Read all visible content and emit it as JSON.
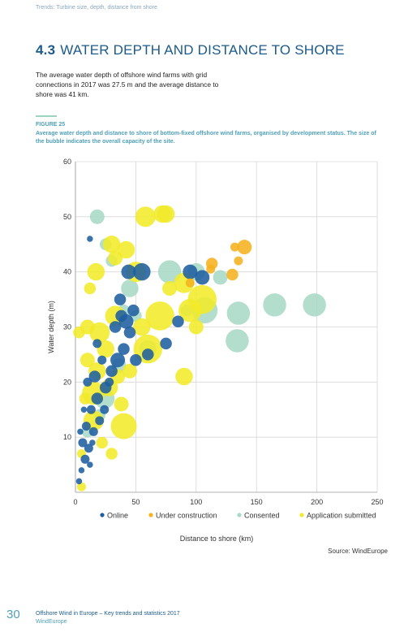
{
  "running_head": "Trends: Turbine size, depth, distance from shore",
  "section": {
    "number": "4.3",
    "title": "WATER DEPTH AND DISTANCE TO SHORE"
  },
  "intro": "The average water depth of offshore wind farms with grid connections in 2017 was 27.5 m and the average distance to shore was 41 km.",
  "figure": {
    "label": "FIGURE 25",
    "caption": "Average water depth and distance to shore of bottom-fixed offshore wind farms, organised by development status. The size of the bubble indicates the overall capacity of the site."
  },
  "source": "Source: WindEurope",
  "footer": {
    "page_number": "30",
    "title": "Offshore Wind in Europe – Key trends and statistics 2017",
    "org": "WindEurope"
  },
  "colors": {
    "online": "#1f5fa0",
    "under_construction": "#f5b21f",
    "consented": "#a9d9c6",
    "application_submitted": "#f1ea2a"
  },
  "chart_data": {
    "type": "scatter",
    "title": "",
    "xlabel": "Distance to shore (km)",
    "ylabel": "Water depth (m)",
    "xlim": [
      0,
      250
    ],
    "ylim": [
      0,
      60
    ],
    "x_ticks": [
      0,
      50,
      100,
      150,
      200,
      250
    ],
    "y_ticks": [
      10,
      20,
      30,
      40,
      50,
      60
    ],
    "grid": "vertical",
    "legend_position": "bottom",
    "size_encoding": "overall capacity of the site",
    "series": [
      {
        "name": "Online",
        "color": "#1f5fa0",
        "points": [
          {
            "x": 3,
            "y": 2,
            "s": 1
          },
          {
            "x": 5,
            "y": 4,
            "s": 1
          },
          {
            "x": 8,
            "y": 6,
            "s": 2
          },
          {
            "x": 12,
            "y": 5,
            "s": 1
          },
          {
            "x": 6,
            "y": 9,
            "s": 2
          },
          {
            "x": 11,
            "y": 8,
            "s": 2
          },
          {
            "x": 14,
            "y": 9,
            "s": 1
          },
          {
            "x": 9,
            "y": 12,
            "s": 2
          },
          {
            "x": 15,
            "y": 11,
            "s": 2
          },
          {
            "x": 13,
            "y": 15,
            "s": 2
          },
          {
            "x": 18,
            "y": 17,
            "s": 3
          },
          {
            "x": 10,
            "y": 20,
            "s": 2
          },
          {
            "x": 16,
            "y": 21,
            "s": 3
          },
          {
            "x": 25,
            "y": 19,
            "s": 3
          },
          {
            "x": 30,
            "y": 22,
            "s": 3
          },
          {
            "x": 22,
            "y": 24,
            "s": 2
          },
          {
            "x": 35,
            "y": 24,
            "s": 4
          },
          {
            "x": 40,
            "y": 26,
            "s": 3
          },
          {
            "x": 33,
            "y": 30,
            "s": 3
          },
          {
            "x": 38,
            "y": 32,
            "s": 3
          },
          {
            "x": 45,
            "y": 29,
            "s": 3
          },
          {
            "x": 37,
            "y": 35,
            "s": 3
          },
          {
            "x": 44,
            "y": 40,
            "s": 4
          },
          {
            "x": 55,
            "y": 40,
            "s": 5
          },
          {
            "x": 60,
            "y": 25,
            "s": 3
          },
          {
            "x": 75,
            "y": 27,
            "s": 3
          },
          {
            "x": 85,
            "y": 31,
            "s": 3
          },
          {
            "x": 95,
            "y": 40,
            "s": 4
          },
          {
            "x": 105,
            "y": 39,
            "s": 4
          },
          {
            "x": 12,
            "y": 46,
            "s": 1
          },
          {
            "x": 50,
            "y": 24,
            "s": 3
          },
          {
            "x": 28,
            "y": 20,
            "s": 2
          },
          {
            "x": 20,
            "y": 13,
            "s": 2
          },
          {
            "x": 7,
            "y": 15,
            "s": 1
          },
          {
            "x": 4,
            "y": 11,
            "s": 1
          },
          {
            "x": 18,
            "y": 27,
            "s": 2
          },
          {
            "x": 42,
            "y": 31,
            "s": 4
          },
          {
            "x": 48,
            "y": 33,
            "s": 3
          },
          {
            "x": 24,
            "y": 15,
            "s": 2
          }
        ]
      },
      {
        "name": "Under construction",
        "color": "#f5b21f",
        "points": [
          {
            "x": 132,
            "y": 44.5,
            "s": 2
          },
          {
            "x": 140,
            "y": 44.5,
            "s": 4
          },
          {
            "x": 130,
            "y": 39.5,
            "s": 3
          },
          {
            "x": 113,
            "y": 41.5,
            "s": 3
          },
          {
            "x": 112,
            "y": 40.5,
            "s": 2
          },
          {
            "x": 135,
            "y": 42,
            "s": 2
          },
          {
            "x": 95,
            "y": 38,
            "s": 2
          }
        ]
      },
      {
        "name": "Consented",
        "color": "#a9d9c6",
        "points": [
          {
            "x": 18,
            "y": 50,
            "s": 4
          },
          {
            "x": 25,
            "y": 45,
            "s": 3
          },
          {
            "x": 30,
            "y": 42,
            "s": 3
          },
          {
            "x": 78,
            "y": 40,
            "s": 7
          },
          {
            "x": 100,
            "y": 40,
            "s": 5
          },
          {
            "x": 120,
            "y": 39,
            "s": 4
          },
          {
            "x": 107,
            "y": 33,
            "s": 8
          },
          {
            "x": 135,
            "y": 32.5,
            "s": 7
          },
          {
            "x": 165,
            "y": 34,
            "s": 7
          },
          {
            "x": 198,
            "y": 34,
            "s": 7
          },
          {
            "x": 134,
            "y": 27.5,
            "s": 7
          },
          {
            "x": 45,
            "y": 37,
            "s": 5
          },
          {
            "x": 60,
            "y": 26,
            "s": 5
          },
          {
            "x": 36,
            "y": 23,
            "s": 4
          },
          {
            "x": 24,
            "y": 17,
            "s": 6
          },
          {
            "x": 20,
            "y": 14,
            "s": 3
          },
          {
            "x": 10,
            "y": 11,
            "s": 3
          },
          {
            "x": 92,
            "y": 33,
            "s": 3
          },
          {
            "x": 40,
            "y": 33,
            "s": 3
          },
          {
            "x": 50,
            "y": 32,
            "s": 3
          }
        ]
      },
      {
        "name": "Application submitted",
        "color": "#f1ea2a",
        "points": [
          {
            "x": 58,
            "y": 50,
            "s": 6
          },
          {
            "x": 72,
            "y": 50.5,
            "s": 5
          },
          {
            "x": 75,
            "y": 50.5,
            "s": 5
          },
          {
            "x": 30,
            "y": 45,
            "s": 5
          },
          {
            "x": 42,
            "y": 44,
            "s": 5
          },
          {
            "x": 33,
            "y": 42.5,
            "s": 4
          },
          {
            "x": 17,
            "y": 40,
            "s": 5
          },
          {
            "x": 50,
            "y": 40,
            "s": 6
          },
          {
            "x": 90,
            "y": 38,
            "s": 6
          },
          {
            "x": 78,
            "y": 37,
            "s": 4
          },
          {
            "x": 12,
            "y": 37,
            "s": 3
          },
          {
            "x": 70,
            "y": 32,
            "s": 9
          },
          {
            "x": 105,
            "y": 35,
            "s": 9
          },
          {
            "x": 95,
            "y": 33,
            "s": 7
          },
          {
            "x": 100,
            "y": 30,
            "s": 4
          },
          {
            "x": 55,
            "y": 30,
            "s": 5
          },
          {
            "x": 33,
            "y": 32,
            "s": 6
          },
          {
            "x": 20,
            "y": 29,
            "s": 6
          },
          {
            "x": 10,
            "y": 30,
            "s": 4
          },
          {
            "x": 60,
            "y": 26,
            "s": 9
          },
          {
            "x": 90,
            "y": 21,
            "s": 5
          },
          {
            "x": 40,
            "y": 12,
            "s": 8
          },
          {
            "x": 15,
            "y": 18,
            "s": 7
          },
          {
            "x": 15,
            "y": 13,
            "s": 6
          },
          {
            "x": 10,
            "y": 24,
            "s": 4
          },
          {
            "x": 25,
            "y": 26,
            "s": 5
          },
          {
            "x": 35,
            "y": 21,
            "s": 4
          },
          {
            "x": 22,
            "y": 9,
            "s": 3
          },
          {
            "x": 30,
            "y": 7,
            "s": 3
          },
          {
            "x": 5,
            "y": 1,
            "s": 2
          },
          {
            "x": 5,
            "y": 7,
            "s": 2
          },
          {
            "x": 28,
            "y": 19,
            "s": 5
          },
          {
            "x": 45,
            "y": 22,
            "s": 4
          },
          {
            "x": 18,
            "y": 22,
            "s": 5
          },
          {
            "x": 8,
            "y": 17,
            "s": 3
          },
          {
            "x": 3,
            "y": 29,
            "s": 3
          },
          {
            "x": 38,
            "y": 16,
            "s": 4
          }
        ]
      }
    ]
  }
}
